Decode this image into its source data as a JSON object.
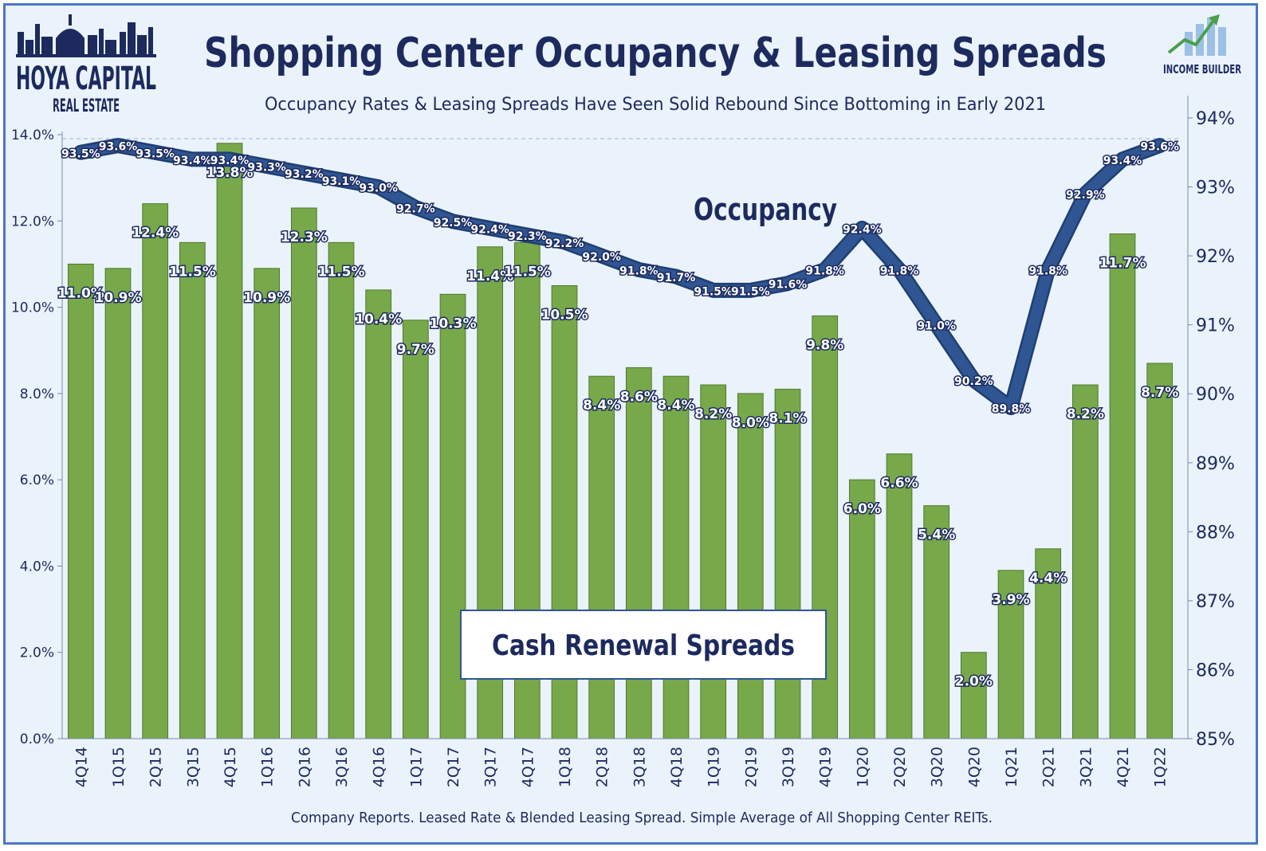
{
  "header": {
    "title": "Shopping Center Occupancy & Leasing Spreads",
    "subtitle": "Occupancy Rates & Leasing Spreads Have Seen Solid Rebound Since Bottoming in Early 2021"
  },
  "logos": {
    "left_main": "HOYA CAPITAL",
    "left_sub": "REAL ESTATE",
    "right": "INCOME BUILDER"
  },
  "source": "Company Reports. Leased Rate & Blended Leasing Spread. Simple Average of All Shopping Center REITs.",
  "colors": {
    "bar": "#77a84a",
    "bar_edge": "#4e7a2c",
    "line": "#2f5692",
    "text": "#1c2a5e",
    "background": "#eaf2fb"
  },
  "chart_data": {
    "type": "bar",
    "categories": [
      "4Q14",
      "1Q15",
      "2Q15",
      "3Q15",
      "4Q15",
      "1Q16",
      "2Q16",
      "3Q16",
      "4Q16",
      "1Q17",
      "2Q17",
      "3Q17",
      "4Q17",
      "1Q18",
      "2Q18",
      "3Q18",
      "4Q18",
      "1Q19",
      "2Q19",
      "3Q19",
      "4Q19",
      "1Q20",
      "2Q20",
      "3Q20",
      "4Q20",
      "1Q21",
      "2Q21",
      "3Q21",
      "4Q21",
      "1Q22"
    ],
    "series": [
      {
        "name": "Cash Renewal Spreads",
        "type": "bar",
        "axis": "left",
        "values": [
          11.0,
          10.9,
          12.4,
          11.5,
          13.8,
          10.9,
          12.3,
          11.5,
          10.4,
          9.7,
          10.3,
          11.4,
          11.5,
          10.5,
          8.4,
          8.6,
          8.4,
          8.2,
          8.0,
          8.1,
          9.8,
          6.0,
          6.6,
          5.4,
          2.0,
          3.9,
          4.4,
          8.2,
          11.7,
          8.7
        ],
        "labels": [
          "11.0%",
          "10.9%",
          "12.4%",
          "11.5%",
          "13.8%",
          "10.9%",
          "12.3%",
          "11.5%",
          "10.4%",
          "9.7%",
          "10.3%",
          "11.4%",
          "11.5%",
          "10.5%",
          "8.4%",
          "8.6%",
          "8.4%",
          "8.2%",
          "8.0%",
          "8.1%",
          "9.8%",
          "6.0%",
          "6.6%",
          "5.4%",
          "2.0%",
          "3.9%",
          "4.4%",
          "8.2%",
          "11.7%",
          "8.7%"
        ]
      },
      {
        "name": "Occupancy",
        "type": "line",
        "axis": "right",
        "values": [
          93.5,
          93.6,
          93.5,
          93.4,
          93.4,
          93.3,
          93.2,
          93.1,
          93.0,
          92.7,
          92.5,
          92.4,
          92.3,
          92.2,
          92.0,
          91.8,
          91.7,
          91.5,
          91.5,
          91.6,
          91.8,
          92.4,
          91.8,
          91.0,
          90.2,
          89.8,
          91.8,
          92.9,
          93.4,
          93.6
        ],
        "labels": [
          "93.5%",
          "93.6%",
          "93.5%",
          "93.4%",
          "93.4%",
          "93.3%",
          "93.2%",
          "93.1%",
          "93.0%",
          "92.7%",
          "92.5%",
          "92.4%",
          "92.3%",
          "92.2%",
          "92.0%",
          "91.8%",
          "91.7%",
          "91.5%",
          "91.5%",
          "91.6%",
          "91.8%",
          "92.4%",
          "91.8%",
          "91.0%",
          "90.2%",
          "89.8%",
          "91.8%",
          "92.9%",
          "93.4%",
          "93.6%"
        ]
      }
    ],
    "y_left": {
      "min": 0,
      "max": 14,
      "ticks": [
        "0.0%",
        "2.0%",
        "4.0%",
        "6.0%",
        "8.0%",
        "10.0%",
        "12.0%",
        "14.0%"
      ]
    },
    "y_right": {
      "min": 85,
      "max": 94,
      "ticks": [
        "85%",
        "86%",
        "87%",
        "88%",
        "89%",
        "90%",
        "91%",
        "92%",
        "93%",
        "94%"
      ]
    },
    "annotations": {
      "line_label": "Occupancy",
      "bar_label": "Cash Renewal Spreads"
    }
  }
}
